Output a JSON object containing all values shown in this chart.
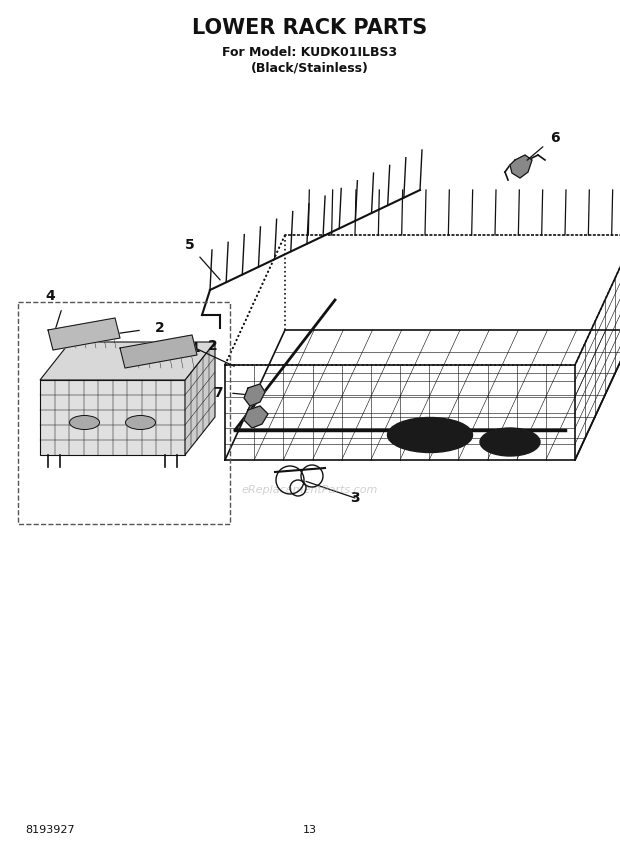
{
  "title": "LOWER RACK PARTS",
  "subtitle1": "For Model: KUDK01ILBS3",
  "subtitle2": "(Black/Stainless)",
  "part_number": "8193927",
  "page_number": "13",
  "bg_color": "#ffffff",
  "text_color": "#111111",
  "watermark": "eReplacementParts.com"
}
